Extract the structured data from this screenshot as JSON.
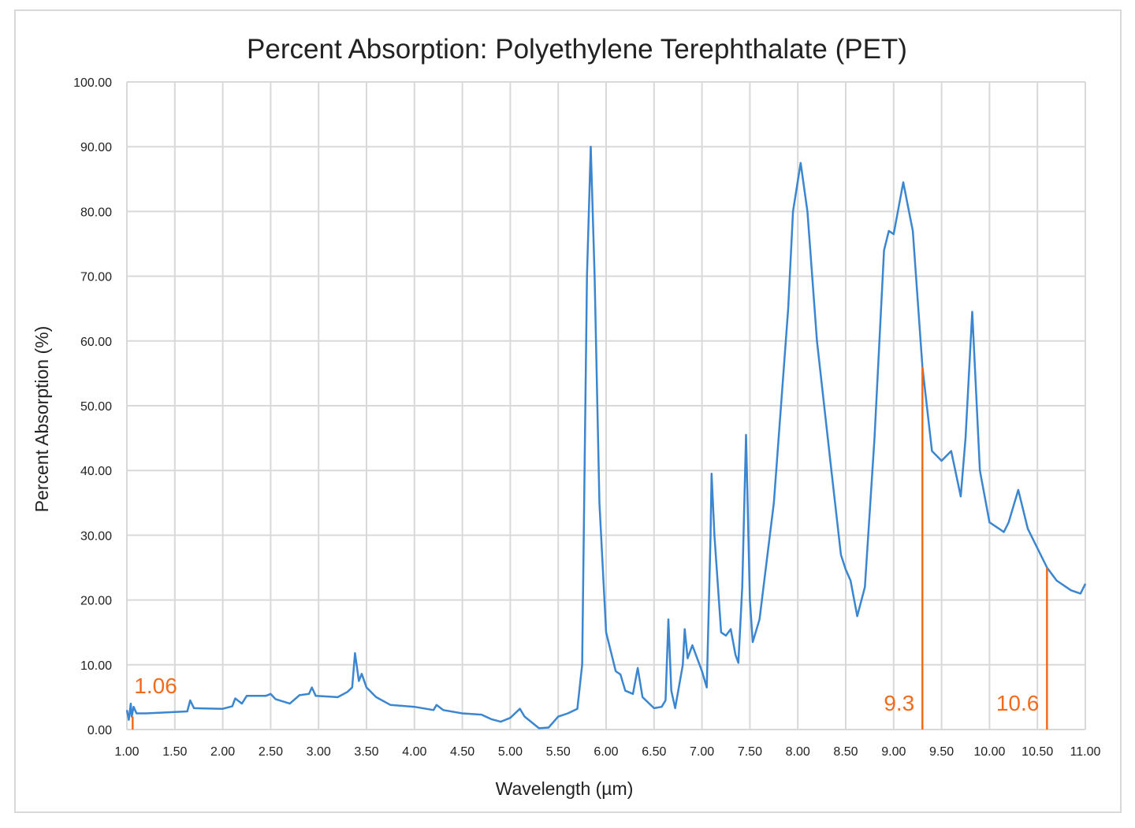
{
  "chart_data": {
    "type": "line",
    "title": "Percent Absorption: Polyethylene Terephthalate (PET)",
    "xlabel": "Wavelength (µm)",
    "ylabel": "Percent Absorption (%)",
    "xlim": [
      1,
      11
    ],
    "ylim": [
      0,
      100
    ],
    "x_ticks": [
      "1.00",
      "1.50",
      "2.00",
      "2.50",
      "3.00",
      "3.50",
      "4.00",
      "4.50",
      "5.00",
      "5.50",
      "6.00",
      "6.50",
      "7.00",
      "7.50",
      "8.00",
      "8.50",
      "9.00",
      "9.50",
      "10.00",
      "10.50",
      "11.00"
    ],
    "y_ticks": [
      "0.00",
      "10.00",
      "20.00",
      "30.00",
      "40.00",
      "50.00",
      "60.00",
      "70.00",
      "80.00",
      "90.00",
      "100.00"
    ],
    "grid": true,
    "series_color": "#3a86d0",
    "marker_color": "#f26b1d",
    "series": [
      {
        "x": [
          1.0,
          1.02,
          1.04,
          1.05,
          1.07,
          1.1,
          1.2,
          1.5,
          1.63,
          1.66,
          1.7,
          2.0,
          2.1,
          2.13,
          2.2,
          2.25,
          2.45,
          2.5,
          2.55,
          2.7,
          2.8,
          2.9,
          2.93,
          2.97,
          3.2,
          3.3,
          3.35,
          3.38,
          3.42,
          3.45,
          3.5,
          3.6,
          3.75,
          4.0,
          4.2,
          4.23,
          4.3,
          4.5,
          4.7,
          4.8,
          4.9,
          5.0,
          5.1,
          5.15,
          5.3,
          5.4,
          5.5,
          5.6,
          5.7,
          5.75,
          5.8,
          5.84,
          5.88,
          5.93,
          6.0,
          6.1,
          6.15,
          6.2,
          6.28,
          6.33,
          6.38,
          6.5,
          6.58,
          6.62,
          6.65,
          6.68,
          6.72,
          6.8,
          6.82,
          6.85,
          6.9,
          7.0,
          7.05,
          7.09,
          7.1,
          7.13,
          7.2,
          7.25,
          7.3,
          7.35,
          7.38,
          7.42,
          7.46,
          7.5,
          7.53,
          7.6,
          7.75,
          7.9,
          7.95,
          8.03,
          8.1,
          8.2,
          8.35,
          8.45,
          8.5,
          8.55,
          8.62,
          8.7,
          8.8,
          8.9,
          8.95,
          9.0,
          9.1,
          9.2,
          9.3,
          9.4,
          9.5,
          9.6,
          9.7,
          9.75,
          9.82,
          9.9,
          10.0,
          10.1,
          10.15,
          10.2,
          10.3,
          10.4,
          10.6,
          10.7,
          10.85,
          10.95,
          11.0
        ],
        "y": [
          3,
          1.5,
          4,
          2,
          3.5,
          2.5,
          2.5,
          2.7,
          2.8,
          4.5,
          3.3,
          3.2,
          3.6,
          4.8,
          4.0,
          5.2,
          5.2,
          5.5,
          4.7,
          4.0,
          5.3,
          5.5,
          6.5,
          5.2,
          5.0,
          5.8,
          6.5,
          11.8,
          7.5,
          8.6,
          6.5,
          5.0,
          3.8,
          3.5,
          3.0,
          3.8,
          3.0,
          2.5,
          2.3,
          1.6,
          1.2,
          1.8,
          3.2,
          2.0,
          0.2,
          0.3,
          2.0,
          2.5,
          3.2,
          10,
          70,
          90,
          70,
          35,
          15,
          9,
          8.5,
          6,
          5.5,
          9.5,
          5,
          3.3,
          3.5,
          4.5,
          17,
          6,
          3.3,
          10,
          15.5,
          11,
          13,
          9,
          6.5,
          30,
          39.5,
          30,
          15,
          14.5,
          15.5,
          11.5,
          10.3,
          22,
          45.5,
          20,
          13.5,
          17,
          35,
          65,
          80,
          87.5,
          80,
          60,
          40,
          27,
          24.7,
          23,
          17.5,
          22,
          45,
          74,
          77,
          76.5,
          84.5,
          77,
          56,
          43,
          41.5,
          43,
          36,
          45,
          64.5,
          40,
          32,
          31,
          30.5,
          32,
          37,
          31,
          25,
          23,
          21.5,
          21,
          22.5
        ]
      }
    ],
    "annotations": [
      {
        "label": "1.06",
        "x": 1.06,
        "y": 2
      },
      {
        "label": "9.3",
        "x": 9.3,
        "y": 56
      },
      {
        "label": "10.6",
        "x": 10.6,
        "y": 25
      }
    ]
  }
}
